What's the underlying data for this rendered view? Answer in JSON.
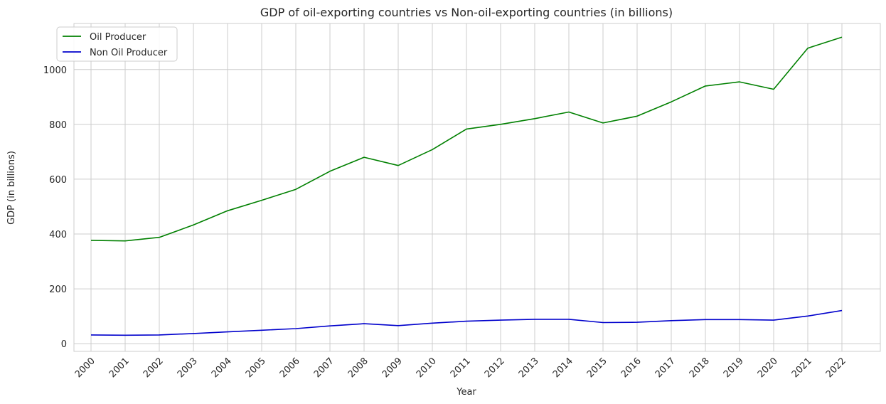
{
  "chart_data": {
    "type": "line",
    "title": "GDP of oil-exporting countries vs Non-oil-exporting countries (in billions)",
    "xlabel": "Year",
    "ylabel": "GDP (in billions)",
    "x": [
      "2000",
      "2001",
      "2002",
      "2003",
      "2004",
      "2005",
      "2006",
      "2007",
      "2008",
      "2009",
      "2010",
      "2011",
      "2012",
      "2013",
      "2014",
      "2015",
      "2016",
      "2017",
      "2018",
      "2019",
      "2020",
      "2021",
      "2022"
    ],
    "yticks": [
      0,
      200,
      400,
      600,
      800,
      1000
    ],
    "ylim": [
      -28,
      1168
    ],
    "grid": true,
    "legend_position": "top-left",
    "series": [
      {
        "name": "Oil Producer",
        "color": "#008000",
        "values": [
          377,
          375,
          388,
          433,
          485,
          523,
          563,
          629,
          680,
          650,
          708,
          783,
          800,
          821,
          845,
          805,
          830,
          882,
          940,
          955,
          928,
          1078,
          1118
        ]
      },
      {
        "name": "Non Oil Producer",
        "color": "#0000cc",
        "values": [
          32,
          31,
          32,
          37,
          43,
          49,
          55,
          65,
          73,
          66,
          75,
          82,
          86,
          89,
          89,
          77,
          78,
          84,
          88,
          88,
          86,
          101,
          121
        ]
      }
    ]
  }
}
